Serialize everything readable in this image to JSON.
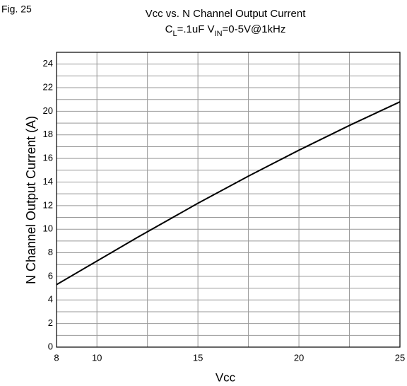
{
  "figure_label": "Fig. 25",
  "chart_data": {
    "type": "line",
    "title": "Vcc vs. N Channel Output Current",
    "subtitle": [
      {
        "text": "C"
      },
      {
        "text": "L",
        "sub": true
      },
      {
        "text": "=.1uF  V"
      },
      {
        "text": "IN",
        "sub": true
      },
      {
        "text": "=0-5V@1kHz"
      }
    ],
    "x_label": "Vcc",
    "y_label": "N Channel Output Current (A)",
    "x": [
      8,
      10,
      12,
      15,
      17.5,
      20,
      22.5,
      25
    ],
    "values": [
      5.3,
      7.3,
      9.3,
      12.2,
      14.5,
      16.7,
      18.8,
      20.8
    ],
    "color": "#000000",
    "xlim": [
      8,
      25
    ],
    "xticks": [
      8,
      10,
      15,
      20,
      25
    ],
    "xminor": [
      12.5,
      17.5,
      22.5
    ],
    "ylim": [
      0,
      25
    ],
    "yticks": [
      0,
      2,
      4,
      6,
      8,
      10,
      12,
      14,
      16,
      18,
      20,
      22,
      24
    ],
    "yminor": [
      1,
      3,
      5,
      7,
      9,
      11,
      13,
      15,
      17,
      19,
      21,
      23,
      25
    ],
    "grid": true
  }
}
